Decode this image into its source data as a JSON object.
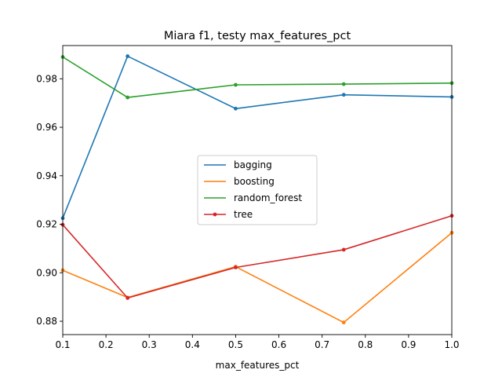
{
  "chart_data": {
    "type": "line",
    "title": "Miara f1, testy max_features_pct",
    "xlabel": "max_features_pct",
    "ylabel": "",
    "xlim": [
      0.1,
      1.0
    ],
    "ylim": [
      0.8745,
      0.9937
    ],
    "xticks": [
      0.1,
      0.2,
      0.3,
      0.4,
      0.5,
      0.6,
      0.7,
      0.8,
      0.9,
      1.0
    ],
    "xtick_labels": [
      "0.1",
      "0.2",
      "0.3",
      "0.4",
      "0.5",
      "0.6",
      "0.7",
      "0.8",
      "0.9",
      "1.0"
    ],
    "yticks": [
      0.88,
      0.9,
      0.92,
      0.94,
      0.96,
      0.98
    ],
    "ytick_labels": [
      "0.88",
      "0.90",
      "0.92",
      "0.94",
      "0.96",
      "0.98"
    ],
    "grid": false,
    "legend_position": "center",
    "x": [
      0.1,
      0.25,
      0.5,
      0.75,
      1.0
    ],
    "series": [
      {
        "name": "bagging",
        "color": "#1f77b4",
        "values": [
          0.9225,
          0.9893,
          0.9677,
          0.9734,
          0.9725
        ]
      },
      {
        "name": "boosting",
        "color": "#ff7f0e",
        "values": [
          0.901,
          0.8898,
          0.9025,
          0.8795,
          0.9165
        ]
      },
      {
        "name": "random_forest",
        "color": "#2ca02c",
        "values": [
          0.989,
          0.9723,
          0.9775,
          0.9778,
          0.9782
        ]
      },
      {
        "name": "tree",
        "color": "#d62728",
        "values": [
          0.9198,
          0.8896,
          0.9022,
          0.9095,
          0.9235
        ]
      }
    ]
  }
}
